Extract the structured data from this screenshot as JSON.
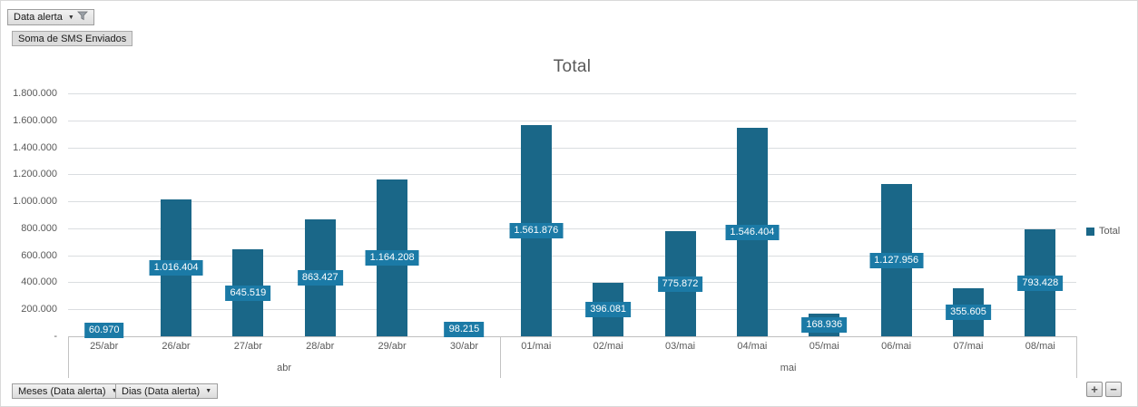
{
  "pivot_controls": {
    "report_filter": {
      "label": "Data alerta"
    },
    "values_button": {
      "label": "Soma de SMS Enviados"
    },
    "axis_fields": [
      {
        "label": "Meses (Data alerta)"
      },
      {
        "label": "Dias (Data alerta)"
      }
    ],
    "expand_button": "+",
    "collapse_button": "−"
  },
  "chart_data": {
    "type": "bar",
    "title": "Total",
    "legend": [
      "Total"
    ],
    "legend_position": "right",
    "grid": true,
    "ylim": [
      0,
      1800000
    ],
    "y_tick_interval": 200000,
    "y_tick_labels": [
      "-",
      "200.000",
      "400.000",
      "600.000",
      "800.000",
      "1.000.000",
      "1.200.000",
      "1.400.000",
      "1.600.000",
      "1.800.000"
    ],
    "groups": [
      {
        "label": "abr",
        "categories": [
          "25/abr",
          "26/abr",
          "27/abr",
          "28/abr",
          "29/abr",
          "30/abr"
        ],
        "values": [
          60970,
          1016404,
          645519,
          863427,
          1164208,
          98215
        ],
        "labels": [
          "60.970",
          "1.016.404",
          "645.519",
          "863.427",
          "1.164.208",
          "98.215"
        ]
      },
      {
        "label": "mai",
        "categories": [
          "01/mai",
          "02/mai",
          "03/mai",
          "04/mai",
          "05/mai",
          "06/mai",
          "07/mai",
          "08/mai"
        ],
        "values": [
          1561876,
          396081,
          775872,
          1546404,
          168936,
          1127956,
          355605,
          793428
        ],
        "labels": [
          "1.561.876",
          "396.081",
          "775.872",
          "1.546.404",
          "168.936",
          "1.127.956",
          "355.605",
          "793.428"
        ]
      }
    ],
    "colors": {
      "bar": "#1a6788",
      "data_label_bg": "#1b7aa6",
      "data_label_text": "#ffffff",
      "axis_text": "#595959",
      "gridline": "#dadde0",
      "axis_line": "#bfbfbf"
    }
  }
}
